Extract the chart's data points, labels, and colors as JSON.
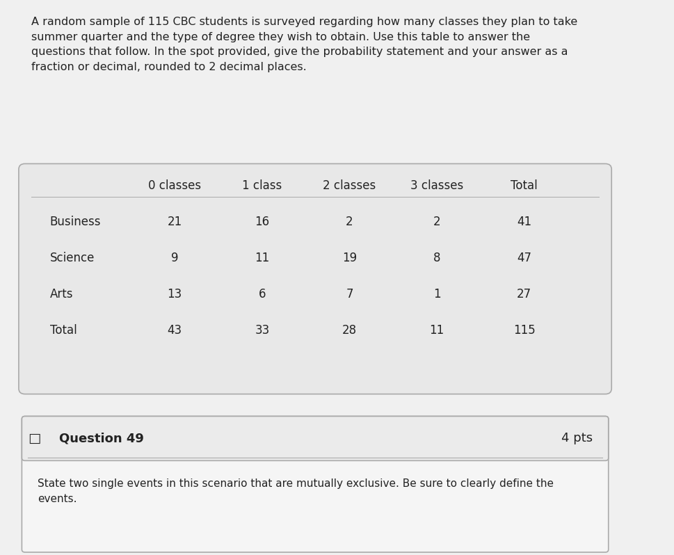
{
  "intro_text": "A random sample of 115 CBC students is surveyed regarding how many classes they plan to take\nsummer quarter and the type of degree they wish to obtain. Use this table to answer the\nquestions that follow. In the spot provided, give the probability statement and your answer as a\nfraction or decimal, rounded to 2 decimal places.",
  "col_headers": [
    "",
    "0 classes",
    "1 class",
    "2 classes",
    "3 classes",
    "Total"
  ],
  "rows": [
    [
      "Business",
      "21",
      "16",
      "2",
      "2",
      "41"
    ],
    [
      "Science",
      "9",
      "11",
      "19",
      "8",
      "47"
    ],
    [
      "Arts",
      "13",
      "6",
      "7",
      "1",
      "27"
    ],
    [
      "Total",
      "43",
      "33",
      "28",
      "11",
      "115"
    ]
  ],
  "question_num": "Question 49",
  "question_pts": "4 pts",
  "question_text": "State two single events in this scenario that are mutually exclusive. Be sure to clearly define the\nevents.",
  "bg_color": "#f0f0f0",
  "table_bg": "#e8e8e8",
  "text_color": "#222222",
  "border_color": "#aaaaaa",
  "question_bg": "#f5f5f5",
  "intro_fontsize": 11.5,
  "table_fontsize": 12,
  "question_fontsize": 13
}
